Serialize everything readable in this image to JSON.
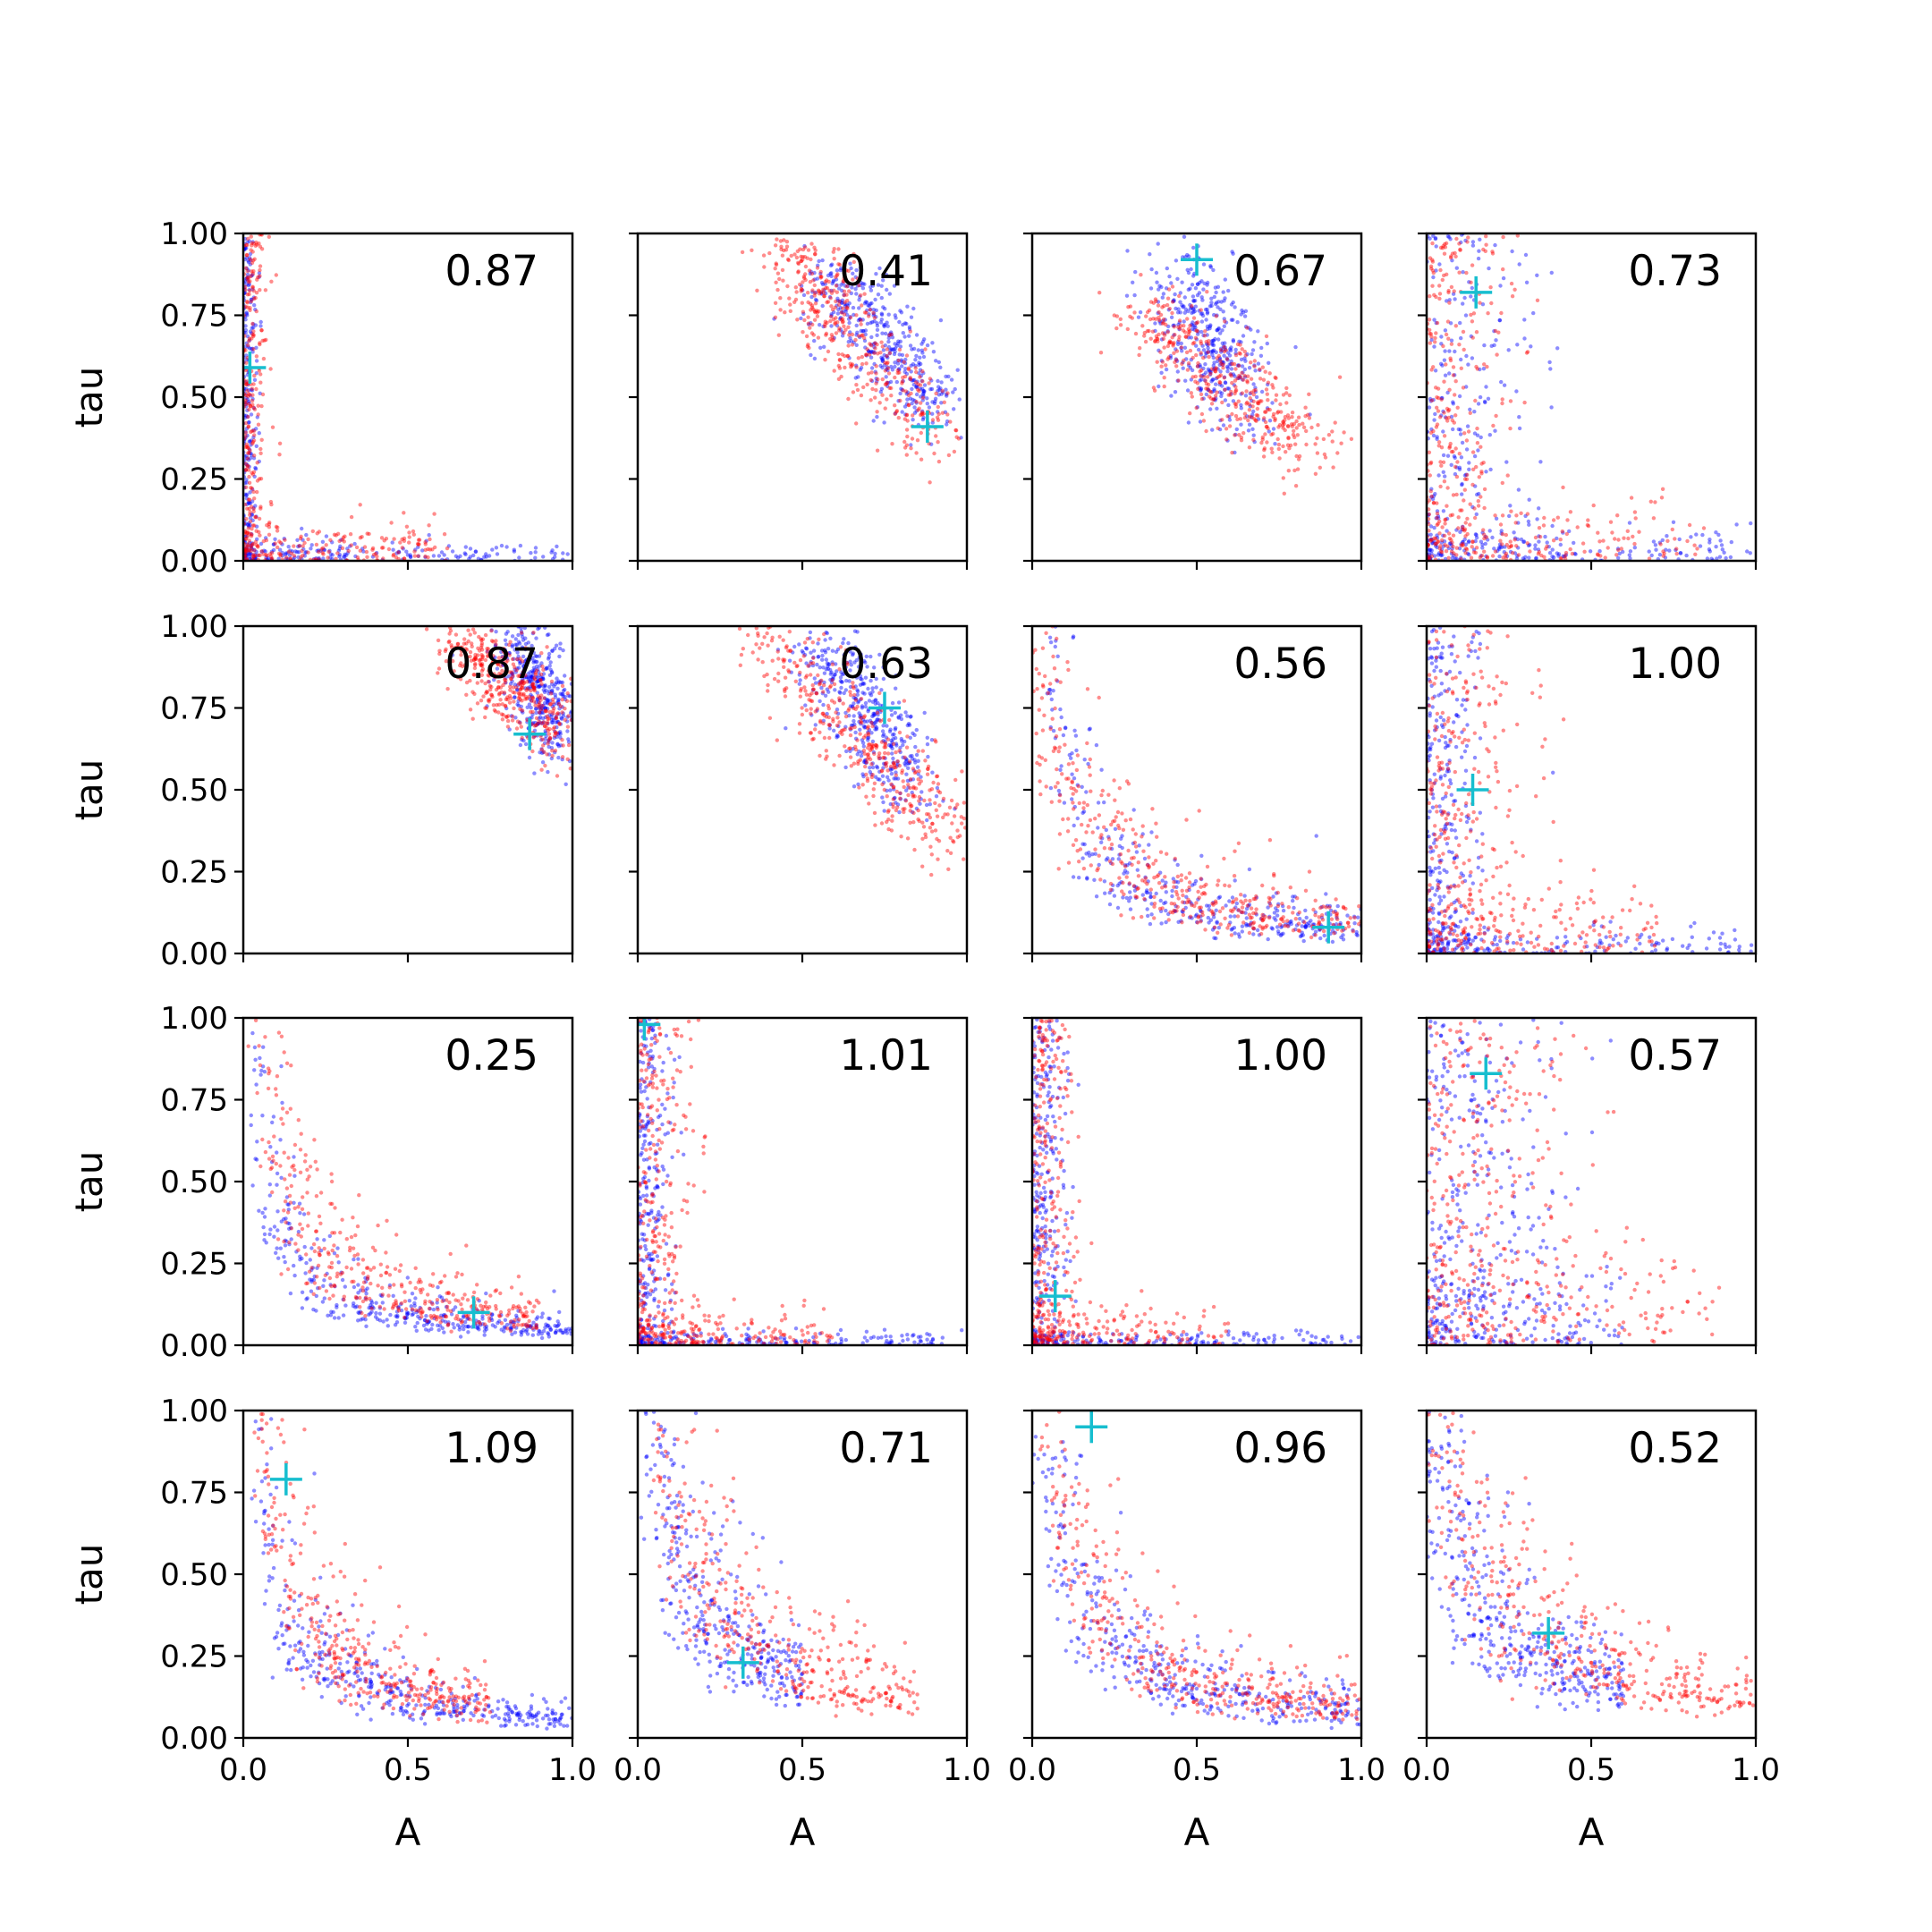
{
  "chart_data": {
    "type": "scatter",
    "layout": "4x4 grid of scatter panels with shared axes",
    "xlabel": "A",
    "ylabel": "tau",
    "xlim": [
      0,
      1
    ],
    "ylim": [
      0,
      1
    ],
    "xticks": [
      "0.0",
      "0.5",
      "1.0"
    ],
    "yticks": [
      "0.00",
      "0.25",
      "0.50",
      "0.75",
      "1.00"
    ],
    "series_colors": {
      "posterior_blue": "#0000ff",
      "posterior_red": "#ff0000",
      "truth_marker": "#17becf"
    },
    "panels": [
      {
        "label": "0.87",
        "truth": [
          0.02,
          0.59
        ],
        "blue": {
          "shape": "L",
          "vx": 0.02,
          "hy": 0.03,
          "xmax": 1.0,
          "ymax": 1.0
        },
        "red": {
          "shape": "L",
          "vx": 0.04,
          "hy": 0.06,
          "xmax": 0.62,
          "ymax": 1.0
        }
      },
      {
        "label": "0.41",
        "truth": [
          0.88,
          0.41
        ],
        "blue": {
          "shape": "band",
          "from": [
            0.57,
            0.86
          ],
          "to": [
            0.9,
            0.48
          ],
          "sx": 0.06,
          "sy": 0.06
        },
        "red": {
          "shape": "band",
          "from": [
            0.44,
            0.96
          ],
          "to": [
            0.9,
            0.38
          ],
          "sx": 0.06,
          "sy": 0.06
        }
      },
      {
        "label": "0.67",
        "truth": [
          0.5,
          0.92
        ],
        "blue": {
          "shape": "band",
          "from": [
            0.45,
            0.86
          ],
          "to": [
            0.62,
            0.47
          ],
          "sx": 0.07,
          "sy": 0.07
        },
        "red": {
          "shape": "band",
          "from": [
            0.35,
            0.76
          ],
          "to": [
            0.85,
            0.33
          ],
          "sx": 0.07,
          "sy": 0.06
        }
      },
      {
        "label": "0.73",
        "truth": [
          0.15,
          0.82
        ],
        "blue": {
          "shape": "L",
          "vx": 0.15,
          "hy": 0.05,
          "xmax": 1.0,
          "ymax": 1.0
        },
        "red": {
          "shape": "L",
          "vx": 0.12,
          "hy": 0.08,
          "xmax": 0.85,
          "ymax": 1.0
        }
      },
      {
        "label": "0.87",
        "truth": [
          0.87,
          0.67
        ],
        "blue": {
          "shape": "band",
          "from": [
            0.84,
            0.96
          ],
          "to": [
            0.96,
            0.64
          ],
          "sx": 0.05,
          "sy": 0.06
        },
        "red": {
          "shape": "band",
          "from": [
            0.66,
            0.96
          ],
          "to": [
            0.98,
            0.65
          ],
          "sx": 0.06,
          "sy": 0.05
        }
      },
      {
        "label": "0.63",
        "truth": [
          0.75,
          0.75
        ],
        "blue": {
          "shape": "band",
          "from": [
            0.55,
            0.95
          ],
          "to": [
            0.84,
            0.5
          ],
          "sx": 0.06,
          "sy": 0.06
        },
        "red": {
          "shape": "band",
          "from": [
            0.4,
            0.95
          ],
          "to": [
            0.96,
            0.35
          ],
          "sx": 0.06,
          "sy": 0.06
        }
      },
      {
        "label": "0.56",
        "truth": [
          0.9,
          0.08
        ],
        "blue": {
          "shape": "curve",
          "k": 0.07,
          "x0": 0.01,
          "xmax": 1.0,
          "ymax": 0.95
        },
        "red": {
          "shape": "curve",
          "k": 0.1,
          "x0": 0.08,
          "xmax": 1.0,
          "ymax": 1.0
        }
      },
      {
        "label": "1.00",
        "truth": [
          0.14,
          0.5
        ],
        "blue": {
          "shape": "L",
          "vx": 0.08,
          "hy": 0.04,
          "xmax": 1.0,
          "ymax": 1.0
        },
        "red": {
          "shape": "L",
          "vx": 0.14,
          "hy": 0.1,
          "xmax": 0.7,
          "ymax": 1.0
        }
      },
      {
        "label": "0.25",
        "truth": [
          0.7,
          0.1
        ],
        "blue": {
          "shape": "curve",
          "k": 0.05,
          "x0": 0.02,
          "xmax": 1.0,
          "ymax": 0.95
        },
        "red": {
          "shape": "curve",
          "k": 0.08,
          "x0": 0.02,
          "xmax": 0.9,
          "ymax": 0.97
        }
      },
      {
        "label": "1.01",
        "truth": [
          0.02,
          0.98
        ],
        "blue": {
          "shape": "L",
          "vx": 0.05,
          "hy": 0.02,
          "xmax": 1.0,
          "ymax": 1.0
        },
        "red": {
          "shape": "L",
          "vx": 0.08,
          "hy": 0.05,
          "xmax": 0.6,
          "ymax": 1.0
        }
      },
      {
        "label": "1.00",
        "truth": [
          0.07,
          0.15
        ],
        "blue": {
          "shape": "L",
          "vx": 0.05,
          "hy": 0.02,
          "xmax": 1.0,
          "ymax": 1.0
        },
        "red": {
          "shape": "L",
          "vx": 0.06,
          "hy": 0.05,
          "xmax": 0.6,
          "ymax": 1.0
        }
      },
      {
        "label": "0.57",
        "truth": [
          0.18,
          0.83
        ],
        "blue": {
          "shape": "L",
          "vx": 0.2,
          "hy": 0.12,
          "xmax": 0.6,
          "ymax": 1.0
        },
        "red": {
          "shape": "L",
          "vx": 0.22,
          "hy": 0.18,
          "xmax": 0.9,
          "ymax": 1.0
        }
      },
      {
        "label": "1.09",
        "truth": [
          0.13,
          0.79
        ],
        "blue": {
          "shape": "curve",
          "k": 0.06,
          "x0": 0.02,
          "xmax": 1.0,
          "ymax": 1.0
        },
        "red": {
          "shape": "curve",
          "k": 0.08,
          "x0": 0.02,
          "xmax": 0.75,
          "ymax": 1.0
        }
      },
      {
        "label": "0.71",
        "truth": [
          0.32,
          0.23
        ],
        "blue": {
          "shape": "curve",
          "k": 0.1,
          "x0": 0.05,
          "xmax": 0.5,
          "ymax": 1.0
        },
        "red": {
          "shape": "curve",
          "k": 0.12,
          "x0": 0.04,
          "xmax": 0.85,
          "ymax": 1.0
        }
      },
      {
        "label": "0.96",
        "truth": [
          0.18,
          0.95
        ],
        "blue": {
          "shape": "curve",
          "k": 0.08,
          "x0": 0.04,
          "xmax": 1.0,
          "ymax": 1.0
        },
        "red": {
          "shape": "curve",
          "k": 0.1,
          "x0": 0.04,
          "xmax": 1.0,
          "ymax": 1.0
        }
      },
      {
        "label": "0.52",
        "truth": [
          0.37,
          0.32
        ],
        "blue": {
          "shape": "curve",
          "k": 0.11,
          "x0": 0.1,
          "xmax": 0.6,
          "ymax": 0.95
        },
        "red": {
          "shape": "curve",
          "k": 0.14,
          "x0": 0.1,
          "xmax": 1.0,
          "ymax": 0.95
        }
      }
    ]
  }
}
